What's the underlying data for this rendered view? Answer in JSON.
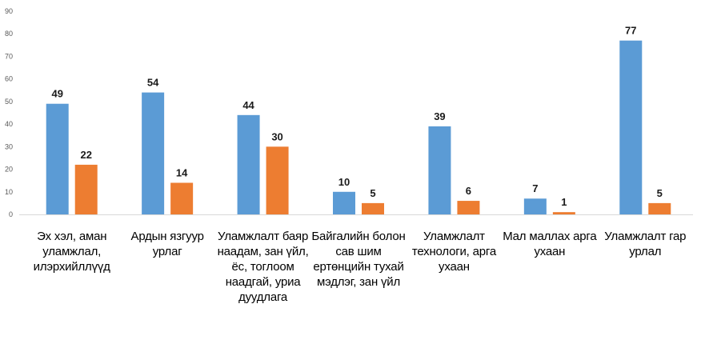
{
  "chart_data": {
    "type": "bar",
    "categories": [
      "Эх хэл, аман уламжлал, илэрхийллүүд",
      "Ардын язгуур урлаг",
      "Уламжлалт баяр наадам, зан үйл, ёс, тоглоом наадгай, уриа дуудлага",
      "Байгалийн болон сав шим ертөнцийн тухай мэдлэг, зан үйл",
      "Уламжлалт технологи, арга ухаан",
      "Мал маллах арга ухаан",
      "Уламжлалт гар урлал"
    ],
    "series": [
      {
        "values": [
          49,
          54,
          44,
          10,
          39,
          7,
          77
        ],
        "color": "#5B9BD5"
      },
      {
        "values": [
          22,
          14,
          30,
          5,
          6,
          1,
          5
        ],
        "color": "#ED7D31"
      }
    ],
    "yticks": [
      "0",
      "10",
      "20",
      "30",
      "40",
      "50",
      "60",
      "70",
      "80",
      "90"
    ],
    "ylim": [
      0,
      90
    ],
    "grid": false,
    "legend": "none",
    "data_labels": true
  }
}
